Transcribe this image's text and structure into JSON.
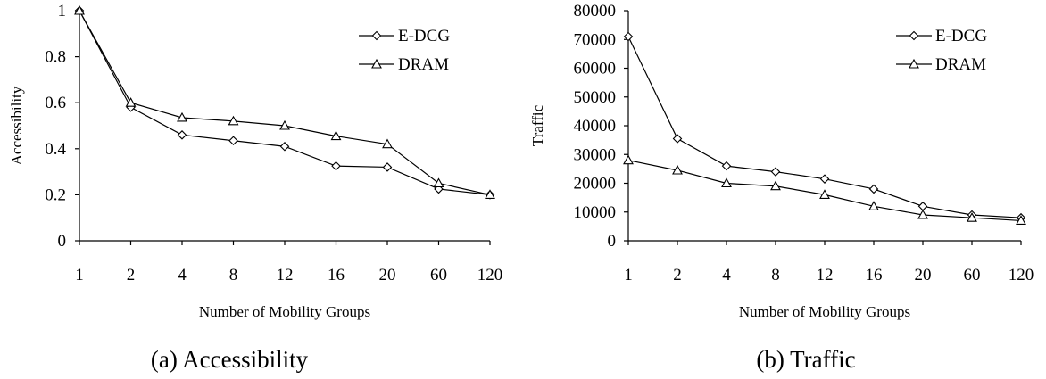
{
  "chart_data": [
    {
      "type": "line",
      "title": "",
      "caption": "(a) Accessibility",
      "xlabel": "Number of Mobility Groups",
      "ylabel": "Accessibility",
      "categories": [
        "1",
        "2",
        "4",
        "8",
        "12",
        "16",
        "20",
        "60",
        "120"
      ],
      "ylim": [
        0,
        1
      ],
      "yticks": [
        "0",
        "0.2",
        "0.4",
        "0.6",
        "0.8",
        "1"
      ],
      "ytick_values": [
        0,
        0.2,
        0.4,
        0.6,
        0.8,
        1
      ],
      "legend_position": "top-right",
      "grid": false,
      "series": [
        {
          "name": "E-DCG",
          "marker": "diamond",
          "values": [
            1.0,
            0.58,
            0.46,
            0.435,
            0.41,
            0.325,
            0.32,
            0.225,
            0.2
          ]
        },
        {
          "name": "DRAM",
          "marker": "triangle",
          "values": [
            1.0,
            0.6,
            0.535,
            0.52,
            0.5,
            0.455,
            0.42,
            0.25,
            0.2
          ]
        }
      ]
    },
    {
      "type": "line",
      "title": "",
      "caption": "(b) Traffic",
      "xlabel": "Number of Mobility Groups",
      "ylabel": "Traffic",
      "categories": [
        "1",
        "2",
        "4",
        "8",
        "12",
        "16",
        "20",
        "60",
        "120"
      ],
      "ylim": [
        0,
        80000
      ],
      "yticks": [
        "0",
        "10000",
        "20000",
        "30000",
        "40000",
        "50000",
        "60000",
        "70000",
        "80000"
      ],
      "ytick_values": [
        0,
        10000,
        20000,
        30000,
        40000,
        50000,
        60000,
        70000,
        80000
      ],
      "legend_position": "top-right",
      "grid": false,
      "series": [
        {
          "name": "E-DCG",
          "marker": "diamond",
          "values": [
            71000,
            35500,
            26000,
            24000,
            21500,
            18000,
            12000,
            9000,
            8000
          ]
        },
        {
          "name": "DRAM",
          "marker": "triangle",
          "values": [
            28000,
            24500,
            20000,
            19000,
            16000,
            12000,
            9000,
            8000,
            7000
          ]
        }
      ]
    }
  ]
}
